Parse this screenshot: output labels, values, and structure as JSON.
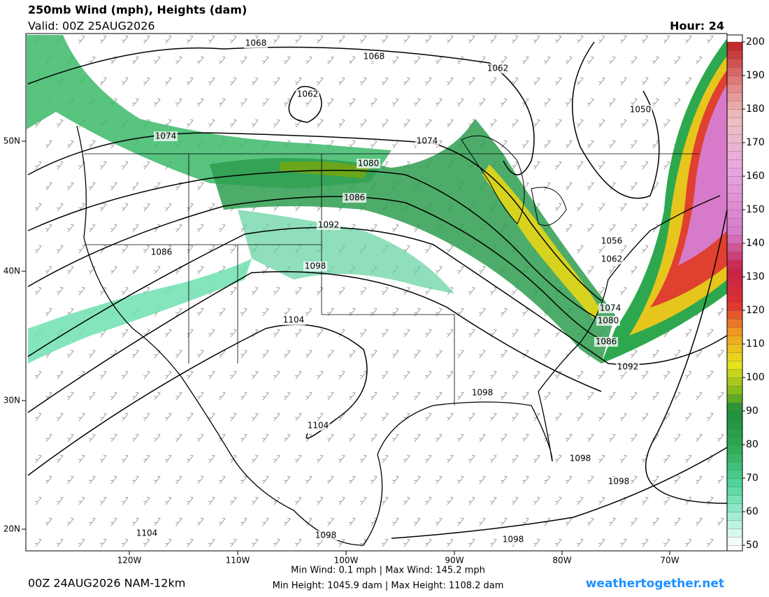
{
  "header": {
    "title": "250mb Wind (mph), Heights (dam)",
    "valid": "Valid: 00Z 25AUG2026",
    "hour": "Hour: 24"
  },
  "map": {
    "lat_labels": [
      "50N",
      "40N",
      "30N",
      "20N"
    ],
    "lon_labels": [
      "120W",
      "110W",
      "100W",
      "90W",
      "80W",
      "70W"
    ],
    "contour_labels": [
      1068,
      1062,
      1068,
      1062,
      1050,
      1074,
      1074,
      1080,
      1086,
      1092,
      1056,
      1062,
      1086,
      1098,
      1074,
      1080,
      1086,
      1092,
      1104,
      1098,
      1104,
      1098,
      1098,
      1104,
      1098,
      1098
    ]
  },
  "colorbar": {
    "ticks": [
      50,
      60,
      70,
      80,
      90,
      100,
      110,
      120,
      130,
      140,
      150,
      160,
      170,
      180,
      190,
      200
    ]
  },
  "footer": {
    "run": "00Z 24AUG2026 NAM-12km",
    "wind_stats": "Min Wind:   0.1 mph | Max Wind: 145.2 mph",
    "height_stats": "Min Height: 1045.9 dam | Max Height: 1108.2 dam",
    "site": "weathertogether.net"
  }
}
